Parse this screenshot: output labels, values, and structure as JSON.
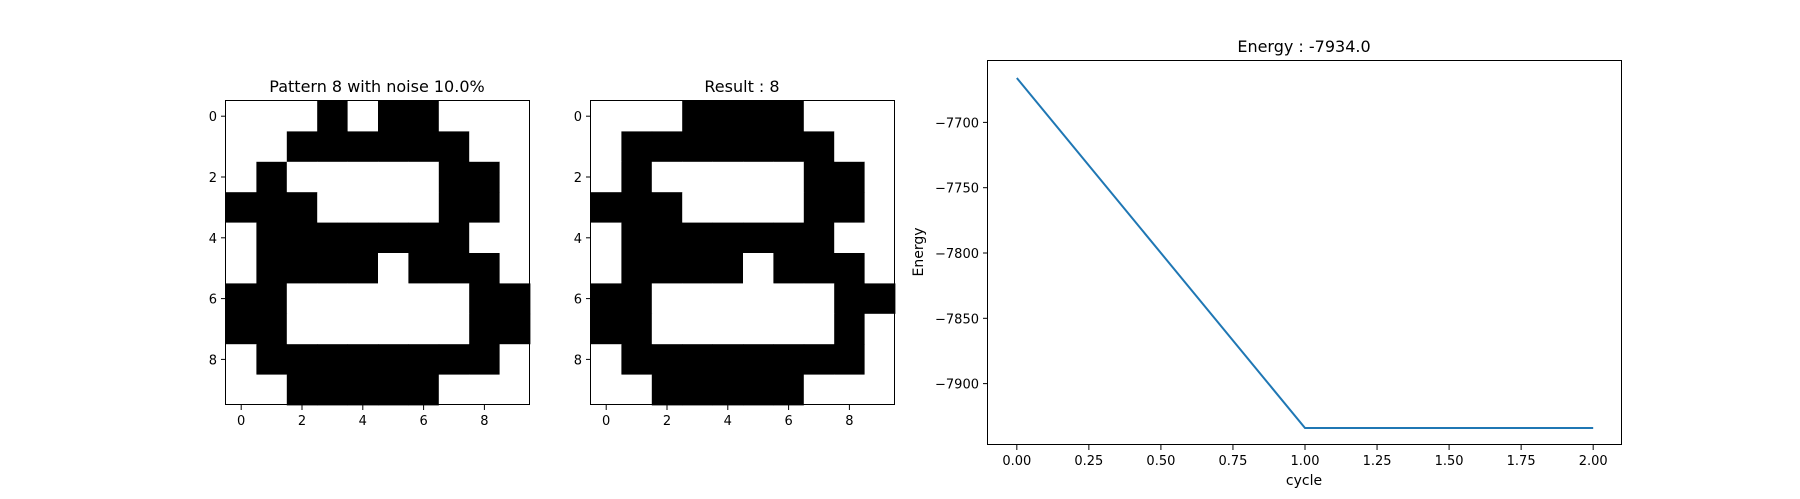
{
  "chart_data": [
    {
      "type": "heatmap",
      "title": "Pattern 8 with noise 10.0%",
      "xlabel": "",
      "ylabel": "",
      "x_ticks": [
        "0",
        "2",
        "4",
        "6",
        "8"
      ],
      "y_ticks": [
        "0",
        "2",
        "4",
        "6",
        "8"
      ],
      "colormap": {
        "0": "#ffffff",
        "1": "#000000"
      },
      "grid": [
        [
          0,
          0,
          0,
          1,
          0,
          1,
          1,
          0,
          0,
          0
        ],
        [
          0,
          0,
          1,
          1,
          1,
          1,
          1,
          1,
          0,
          0
        ],
        [
          0,
          1,
          0,
          0,
          0,
          0,
          0,
          1,
          1,
          0
        ],
        [
          1,
          1,
          1,
          0,
          0,
          0,
          0,
          1,
          1,
          0
        ],
        [
          0,
          1,
          1,
          1,
          1,
          1,
          1,
          1,
          0,
          0
        ],
        [
          0,
          1,
          1,
          1,
          1,
          0,
          1,
          1,
          1,
          0
        ],
        [
          1,
          1,
          0,
          0,
          0,
          0,
          0,
          0,
          1,
          1
        ],
        [
          1,
          1,
          0,
          0,
          0,
          0,
          0,
          0,
          1,
          1
        ],
        [
          0,
          1,
          1,
          1,
          1,
          1,
          1,
          1,
          1,
          0
        ],
        [
          0,
          0,
          1,
          1,
          1,
          1,
          1,
          0,
          0,
          0
        ]
      ]
    },
    {
      "type": "heatmap",
      "title": "Result : 8",
      "xlabel": "",
      "ylabel": "",
      "x_ticks": [
        "0",
        "2",
        "4",
        "6",
        "8"
      ],
      "y_ticks": [
        "0",
        "2",
        "4",
        "6",
        "8"
      ],
      "colormap": {
        "0": "#ffffff",
        "1": "#000000"
      },
      "grid": [
        [
          0,
          0,
          0,
          1,
          1,
          1,
          1,
          0,
          0,
          0
        ],
        [
          0,
          1,
          1,
          1,
          1,
          1,
          1,
          1,
          0,
          0
        ],
        [
          0,
          1,
          0,
          0,
          0,
          0,
          0,
          1,
          1,
          0
        ],
        [
          1,
          1,
          1,
          0,
          0,
          0,
          0,
          1,
          1,
          0
        ],
        [
          0,
          1,
          1,
          1,
          1,
          1,
          1,
          1,
          0,
          0
        ],
        [
          0,
          1,
          1,
          1,
          1,
          0,
          1,
          1,
          1,
          0
        ],
        [
          1,
          1,
          0,
          0,
          0,
          0,
          0,
          0,
          1,
          1
        ],
        [
          1,
          1,
          0,
          0,
          0,
          0,
          0,
          0,
          1,
          0
        ],
        [
          0,
          1,
          1,
          1,
          1,
          1,
          1,
          1,
          1,
          0
        ],
        [
          0,
          0,
          1,
          1,
          1,
          1,
          1,
          0,
          0,
          0
        ]
      ]
    },
    {
      "type": "line",
      "title": "Energy : -7934.0",
      "xlabel": "cycle",
      "ylabel": "Energy",
      "x": [
        0,
        1,
        2
      ],
      "series": [
        {
          "values": [
            -7666,
            -7934,
            -7934
          ],
          "color": "#1f77b4"
        }
      ],
      "xlim": [
        -0.1,
        2.1
      ],
      "ylim": [
        -7947,
        -7653
      ],
      "x_ticks": [
        0.0,
        0.25,
        0.5,
        0.75,
        1.0,
        1.25,
        1.5,
        1.75,
        2.0
      ],
      "x_tick_labels": [
        "0.00",
        "0.25",
        "0.50",
        "0.75",
        "1.00",
        "1.25",
        "1.50",
        "1.75",
        "2.00"
      ],
      "y_ticks": [
        -7700,
        -7750,
        -7800,
        -7850,
        -7900
      ],
      "y_tick_labels": [
        "−7700",
        "−7750",
        "−7800",
        "−7850",
        "−7900"
      ],
      "grid": false
    }
  ]
}
